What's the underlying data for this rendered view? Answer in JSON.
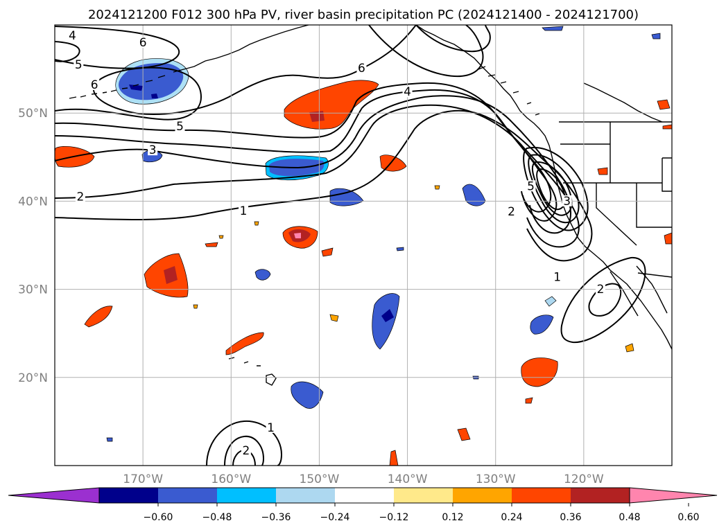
{
  "title": "2024121200 F012 300 hPa PV, river basin precipitation PC (2024121400 - 2024121700)",
  "map": {
    "projection": "plate-carree",
    "lon_range": [
      -180,
      -110
    ],
    "lat_range": [
      10,
      60
    ],
    "gridlines": true,
    "lat_ticks": [
      {
        "lat": 50,
        "label": "50°N"
      },
      {
        "lat": 40,
        "label": "40°N"
      },
      {
        "lat": 30,
        "label": "30°N"
      },
      {
        "lat": 20,
        "label": "20°N"
      }
    ],
    "lon_ticks": [
      {
        "lon": -170,
        "label": "170°W"
      },
      {
        "lon": -160,
        "label": "160°W"
      },
      {
        "lon": -150,
        "label": "150°W"
      },
      {
        "lon": -140,
        "label": "140°W"
      },
      {
        "lon": -130,
        "label": "130°W"
      },
      {
        "lon": -120,
        "label": "120°W"
      }
    ]
  },
  "colorbar": {
    "ticks": [
      "−0.60",
      "−0.48",
      "−0.36",
      "−0.24",
      "−0.12",
      "0.12",
      "0.24",
      "0.36",
      "0.48",
      "0.60"
    ],
    "colors": [
      "#9b30d0",
      "#00008b",
      "#3a5bd0",
      "#00bfff",
      "#add8f0",
      "#ffffff",
      "#ffe98a",
      "#ffa500",
      "#ff4500",
      "#b22222",
      "#ff85ae"
    ],
    "extend": "both"
  },
  "pv_contour_labels": [
    {
      "text": "6",
      "lon": -170.0,
      "lat": 57.8
    },
    {
      "text": "5",
      "lon": -177.3,
      "lat": 55.3
    },
    {
      "text": "4",
      "lon": -178.0,
      "lat": 58.6
    },
    {
      "text": "6",
      "lon": -175.5,
      "lat": 53.0
    },
    {
      "text": "5",
      "lon": -165.8,
      "lat": 48.3
    },
    {
      "text": "3",
      "lon": -168.9,
      "lat": 45.6
    },
    {
      "text": "2",
      "lon": -177.1,
      "lat": 40.3
    },
    {
      "text": "1",
      "lon": -158.6,
      "lat": 38.7
    },
    {
      "text": "6",
      "lon": -145.2,
      "lat": 54.9
    },
    {
      "text": "4",
      "lon": -140.0,
      "lat": 52.2
    },
    {
      "text": "5",
      "lon": -126.0,
      "lat": 41.5
    },
    {
      "text": "3",
      "lon": -121.9,
      "lat": 39.8
    },
    {
      "text": "2",
      "lon": -128.2,
      "lat": 38.6
    },
    {
      "text": "1",
      "lon": -123.0,
      "lat": 31.2
    },
    {
      "text": "2",
      "lon": -118.1,
      "lat": 29.8
    },
    {
      "text": "1",
      "lon": -155.5,
      "lat": 14.1
    },
    {
      "text": "2",
      "lon": -158.3,
      "lat": 11.5
    }
  ]
}
